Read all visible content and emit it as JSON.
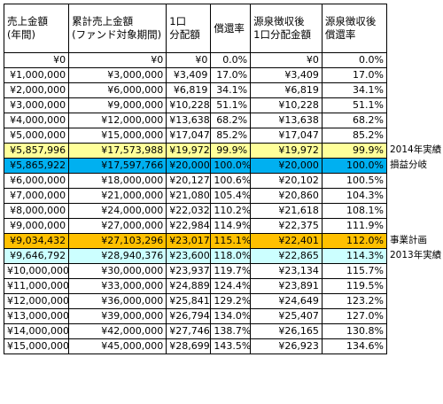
{
  "headers": [
    "売上金額\n(年間)",
    "累計売上金額\n(ファンド対象期間)",
    "1口\n分配額",
    "償還率",
    "源泉徴収後\n1口分配金額",
    "源泉徴収後\n償還率"
  ],
  "rows": [
    {
      "cells": [
        "¥0",
        "¥0",
        "¥0",
        "0.0%",
        "¥0",
        "0.0%"
      ],
      "note": ""
    },
    {
      "cells": [
        "¥1,000,000",
        "¥3,000,000",
        "¥3,409",
        "17.0%",
        "¥3,409",
        "17.0%"
      ],
      "note": ""
    },
    {
      "cells": [
        "¥2,000,000",
        "¥6,000,000",
        "¥6,819",
        "34.1%",
        "¥6,819",
        "34.1%"
      ],
      "note": ""
    },
    {
      "cells": [
        "¥3,000,000",
        "¥9,000,000",
        "¥10,228",
        "51.1%",
        "¥10,228",
        "51.1%"
      ],
      "note": ""
    },
    {
      "cells": [
        "¥4,000,000",
        "¥12,000,000",
        "¥13,638",
        "68.2%",
        "¥13,638",
        "68.2%"
      ],
      "note": ""
    },
    {
      "cells": [
        "¥5,000,000",
        "¥15,000,000",
        "¥17,047",
        "85.2%",
        "¥17,047",
        "85.2%"
      ],
      "note": ""
    },
    {
      "cells": [
        "¥5,857,996",
        "¥17,573,988",
        "¥19,972",
        "99.9%",
        "¥19,972",
        "99.9%"
      ],
      "note": "2014年実績",
      "highlight": "yellow"
    },
    {
      "cells": [
        "¥5,865,922",
        "¥17,597,766",
        "¥20,000",
        "100.0%",
        "¥20,000",
        "100.0%"
      ],
      "note": "損益分岐",
      "highlight": "blue"
    },
    {
      "cells": [
        "¥6,000,000",
        "¥18,000,000",
        "¥20,127",
        "100.6%",
        "¥20,102",
        "100.5%"
      ],
      "note": ""
    },
    {
      "cells": [
        "¥7,000,000",
        "¥21,000,000",
        "¥21,080",
        "105.4%",
        "¥20,860",
        "104.3%"
      ],
      "note": ""
    },
    {
      "cells": [
        "¥8,000,000",
        "¥24,000,000",
        "¥22,032",
        "110.2%",
        "¥21,618",
        "108.1%"
      ],
      "note": ""
    },
    {
      "cells": [
        "¥9,000,000",
        "¥27,000,000",
        "¥22,984",
        "114.9%",
        "¥22,375",
        "111.9%"
      ],
      "note": ""
    },
    {
      "cells": [
        "¥9,034,432",
        "¥27,103,296",
        "¥23,017",
        "115.1%",
        "¥22,401",
        "112.0%"
      ],
      "note": "事業計画",
      "highlight": "orange"
    },
    {
      "cells": [
        "¥9,646,792",
        "¥28,940,376",
        "¥23,600",
        "118.0%",
        "¥22,865",
        "114.3%"
      ],
      "note": "2013年実績",
      "highlight": "cyan"
    },
    {
      "cells": [
        "¥10,000,000",
        "¥30,000,000",
        "¥23,937",
        "119.7%",
        "¥23,134",
        "115.7%"
      ],
      "note": ""
    },
    {
      "cells": [
        "¥11,000,000",
        "¥33,000,000",
        "¥24,889",
        "124.4%",
        "¥23,891",
        "119.5%"
      ],
      "note": ""
    },
    {
      "cells": [
        "¥12,000,000",
        "¥36,000,000",
        "¥25,841",
        "129.2%",
        "¥24,649",
        "123.2%"
      ],
      "note": ""
    },
    {
      "cells": [
        "¥13,000,000",
        "¥39,000,000",
        "¥26,794",
        "134.0%",
        "¥25,407",
        "127.0%"
      ],
      "note": ""
    },
    {
      "cells": [
        "¥14,000,000",
        "¥42,000,000",
        "¥27,746",
        "138.7%",
        "¥26,165",
        "130.8%"
      ],
      "note": ""
    },
    {
      "cells": [
        "¥15,000,000",
        "¥45,000,000",
        "¥28,699",
        "143.5%",
        "¥26,923",
        "134.6%"
      ],
      "note": ""
    }
  ],
  "colors": {
    "yellow": "#ffff99",
    "blue": "#00b0f0",
    "orange": "#ffc000",
    "cyan": "#ccffff"
  }
}
